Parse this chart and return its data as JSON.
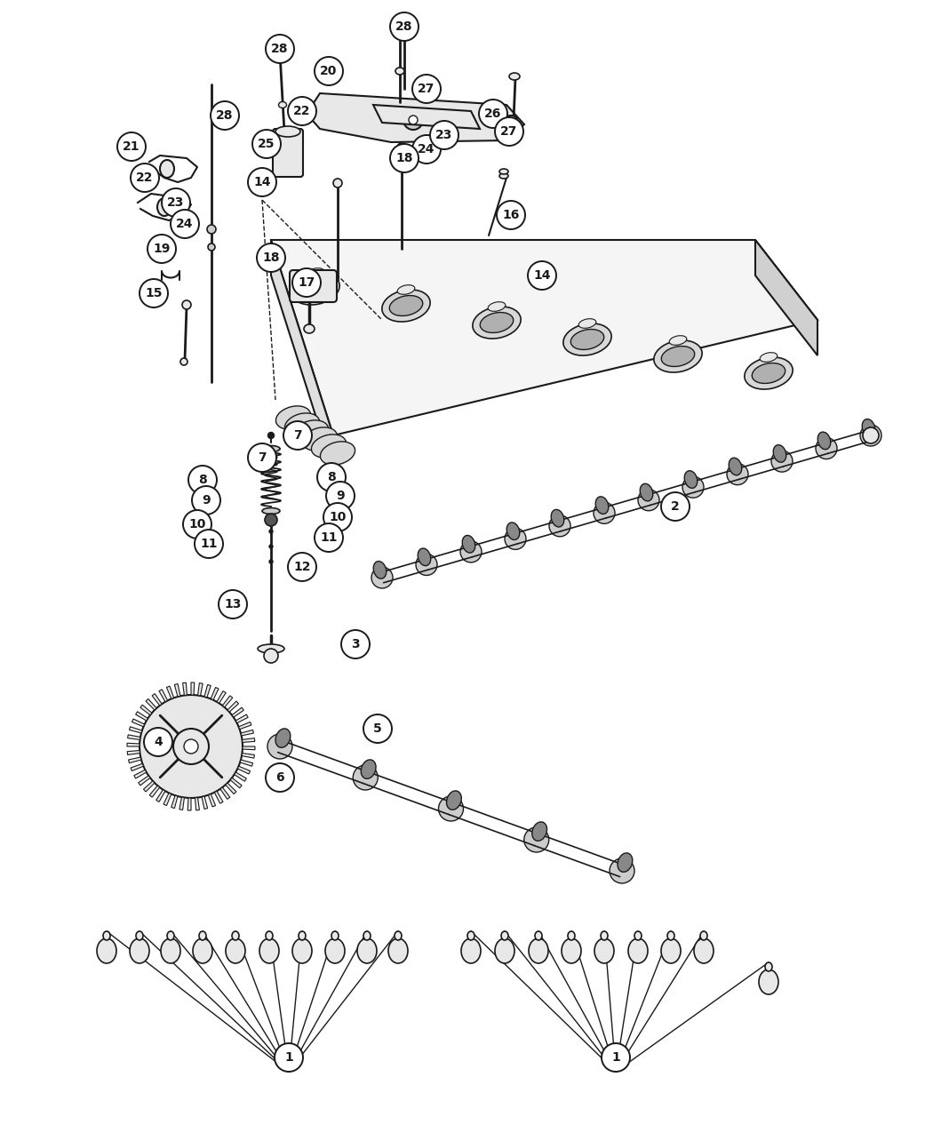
{
  "background_color": "#ffffff",
  "line_color": "#1a1a1a",
  "gray_dark": "#555555",
  "gray_mid": "#888888",
  "gray_light": "#cccccc",
  "gray_fill": "#e8e8e8",
  "circle_r": 16,
  "font_size": 10,
  "labels": [
    [
      315,
      55,
      "28"
    ],
    [
      455,
      30,
      "28"
    ],
    [
      370,
      80,
      "20"
    ],
    [
      480,
      100,
      "27"
    ],
    [
      253,
      130,
      "28"
    ],
    [
      340,
      125,
      "22"
    ],
    [
      555,
      128,
      "26"
    ],
    [
      148,
      165,
      "21"
    ],
    [
      300,
      162,
      "25"
    ],
    [
      573,
      148,
      "27"
    ],
    [
      163,
      200,
      "22"
    ],
    [
      480,
      168,
      "24"
    ],
    [
      198,
      228,
      "23"
    ],
    [
      500,
      152,
      "23"
    ],
    [
      208,
      252,
      "24"
    ],
    [
      295,
      205,
      "14"
    ],
    [
      455,
      178,
      "18"
    ],
    [
      182,
      280,
      "19"
    ],
    [
      305,
      290,
      "18"
    ],
    [
      173,
      330,
      "15"
    ],
    [
      575,
      242,
      "16"
    ],
    [
      345,
      318,
      "17"
    ],
    [
      610,
      310,
      "14"
    ],
    [
      335,
      490,
      "7"
    ],
    [
      295,
      515,
      "7"
    ],
    [
      228,
      540,
      "8"
    ],
    [
      373,
      537,
      "8"
    ],
    [
      232,
      563,
      "9"
    ],
    [
      383,
      558,
      "9"
    ],
    [
      222,
      590,
      "10"
    ],
    [
      380,
      582,
      "10"
    ],
    [
      235,
      612,
      "11"
    ],
    [
      370,
      605,
      "11"
    ],
    [
      340,
      638,
      "12"
    ],
    [
      262,
      680,
      "13"
    ],
    [
      760,
      570,
      "2"
    ],
    [
      400,
      725,
      "3"
    ],
    [
      178,
      835,
      "4"
    ],
    [
      425,
      820,
      "5"
    ],
    [
      315,
      875,
      "6"
    ],
    [
      325,
      1190,
      "1"
    ],
    [
      693,
      1190,
      "1"
    ]
  ]
}
